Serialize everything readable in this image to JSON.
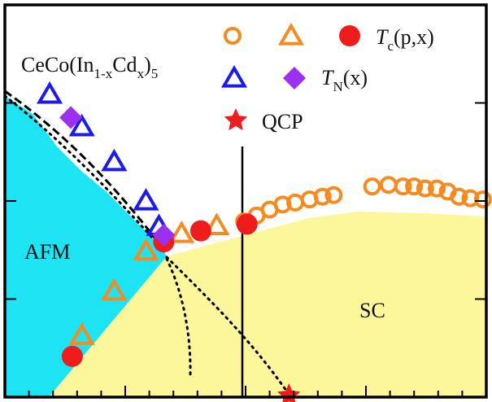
{
  "chart_data": {
    "type": "scatter",
    "title": "",
    "xlabel": "",
    "ylabel": "",
    "xlim": [
      0,
      1
    ],
    "ylim": [
      0,
      1
    ],
    "grid": false,
    "legend_position": "top-right",
    "compound_label": {
      "base": "CeCo(In",
      "sub1": "1-x",
      "mid": "Cd",
      "sub2": "x",
      "close": ")",
      "sub3": "5"
    },
    "region_labels": {
      "afm": "AFM",
      "sc": "SC"
    },
    "legend": {
      "tc_symbol": "T",
      "tc_sub": "c",
      "tc_args": "(p,x)",
      "tn_symbol": "T",
      "tn_sub": "N",
      "tn_args": "(x)",
      "qcp": "QCP"
    },
    "colors": {
      "afm_fill": "#1ee3f2",
      "sc_fill": "#fbf79a",
      "orange": "#f58a1f",
      "red": "#ee1c1c",
      "blue": "#1a1aee",
      "purple": "#9b30f0",
      "black": "#000000"
    },
    "series": [
      {
        "marker": "open-circle",
        "color": "#f58a1f",
        "x": [
          0.497,
          0.523,
          0.55,
          0.577,
          0.603,
          0.633,
          0.66,
          0.683,
          0.763,
          0.797,
          0.827,
          0.85,
          0.873,
          0.897,
          0.92,
          0.943,
          0.967,
          0.993
        ],
        "y": [
          0.448,
          0.463,
          0.478,
          0.491,
          0.496,
          0.504,
          0.511,
          0.515,
          0.537,
          0.541,
          0.537,
          0.537,
          0.532,
          0.532,
          0.524,
          0.511,
          0.507,
          0.504
        ]
      },
      {
        "marker": "open-triangle",
        "color": "#f58a1f",
        "x": [
          0.16,
          0.227,
          0.293,
          0.367,
          0.44
        ],
        "y": [
          0.157,
          0.27,
          0.372,
          0.417,
          0.437
        ]
      },
      {
        "marker": "filled-circle",
        "color": "#ee1c1c",
        "x": [
          0.14,
          0.33,
          0.407,
          0.503
        ],
        "y": [
          0.104,
          0.396,
          0.424,
          0.441
        ]
      },
      {
        "marker": "open-triangle",
        "color": "#1a1aee",
        "x": [
          0.093,
          0.16,
          0.227,
          0.293,
          0.32
        ],
        "y": [
          0.772,
          0.689,
          0.6,
          0.5,
          0.435
        ]
      },
      {
        "marker": "filled-diamond",
        "color": "#9b30f0",
        "x": [
          0.137,
          0.33
        ],
        "y": [
          0.713,
          0.413
        ]
      },
      {
        "marker": "filled-star",
        "color": "#ee1c1c",
        "x": [
          0.59
        ],
        "y": [
          0.004
        ]
      }
    ]
  }
}
